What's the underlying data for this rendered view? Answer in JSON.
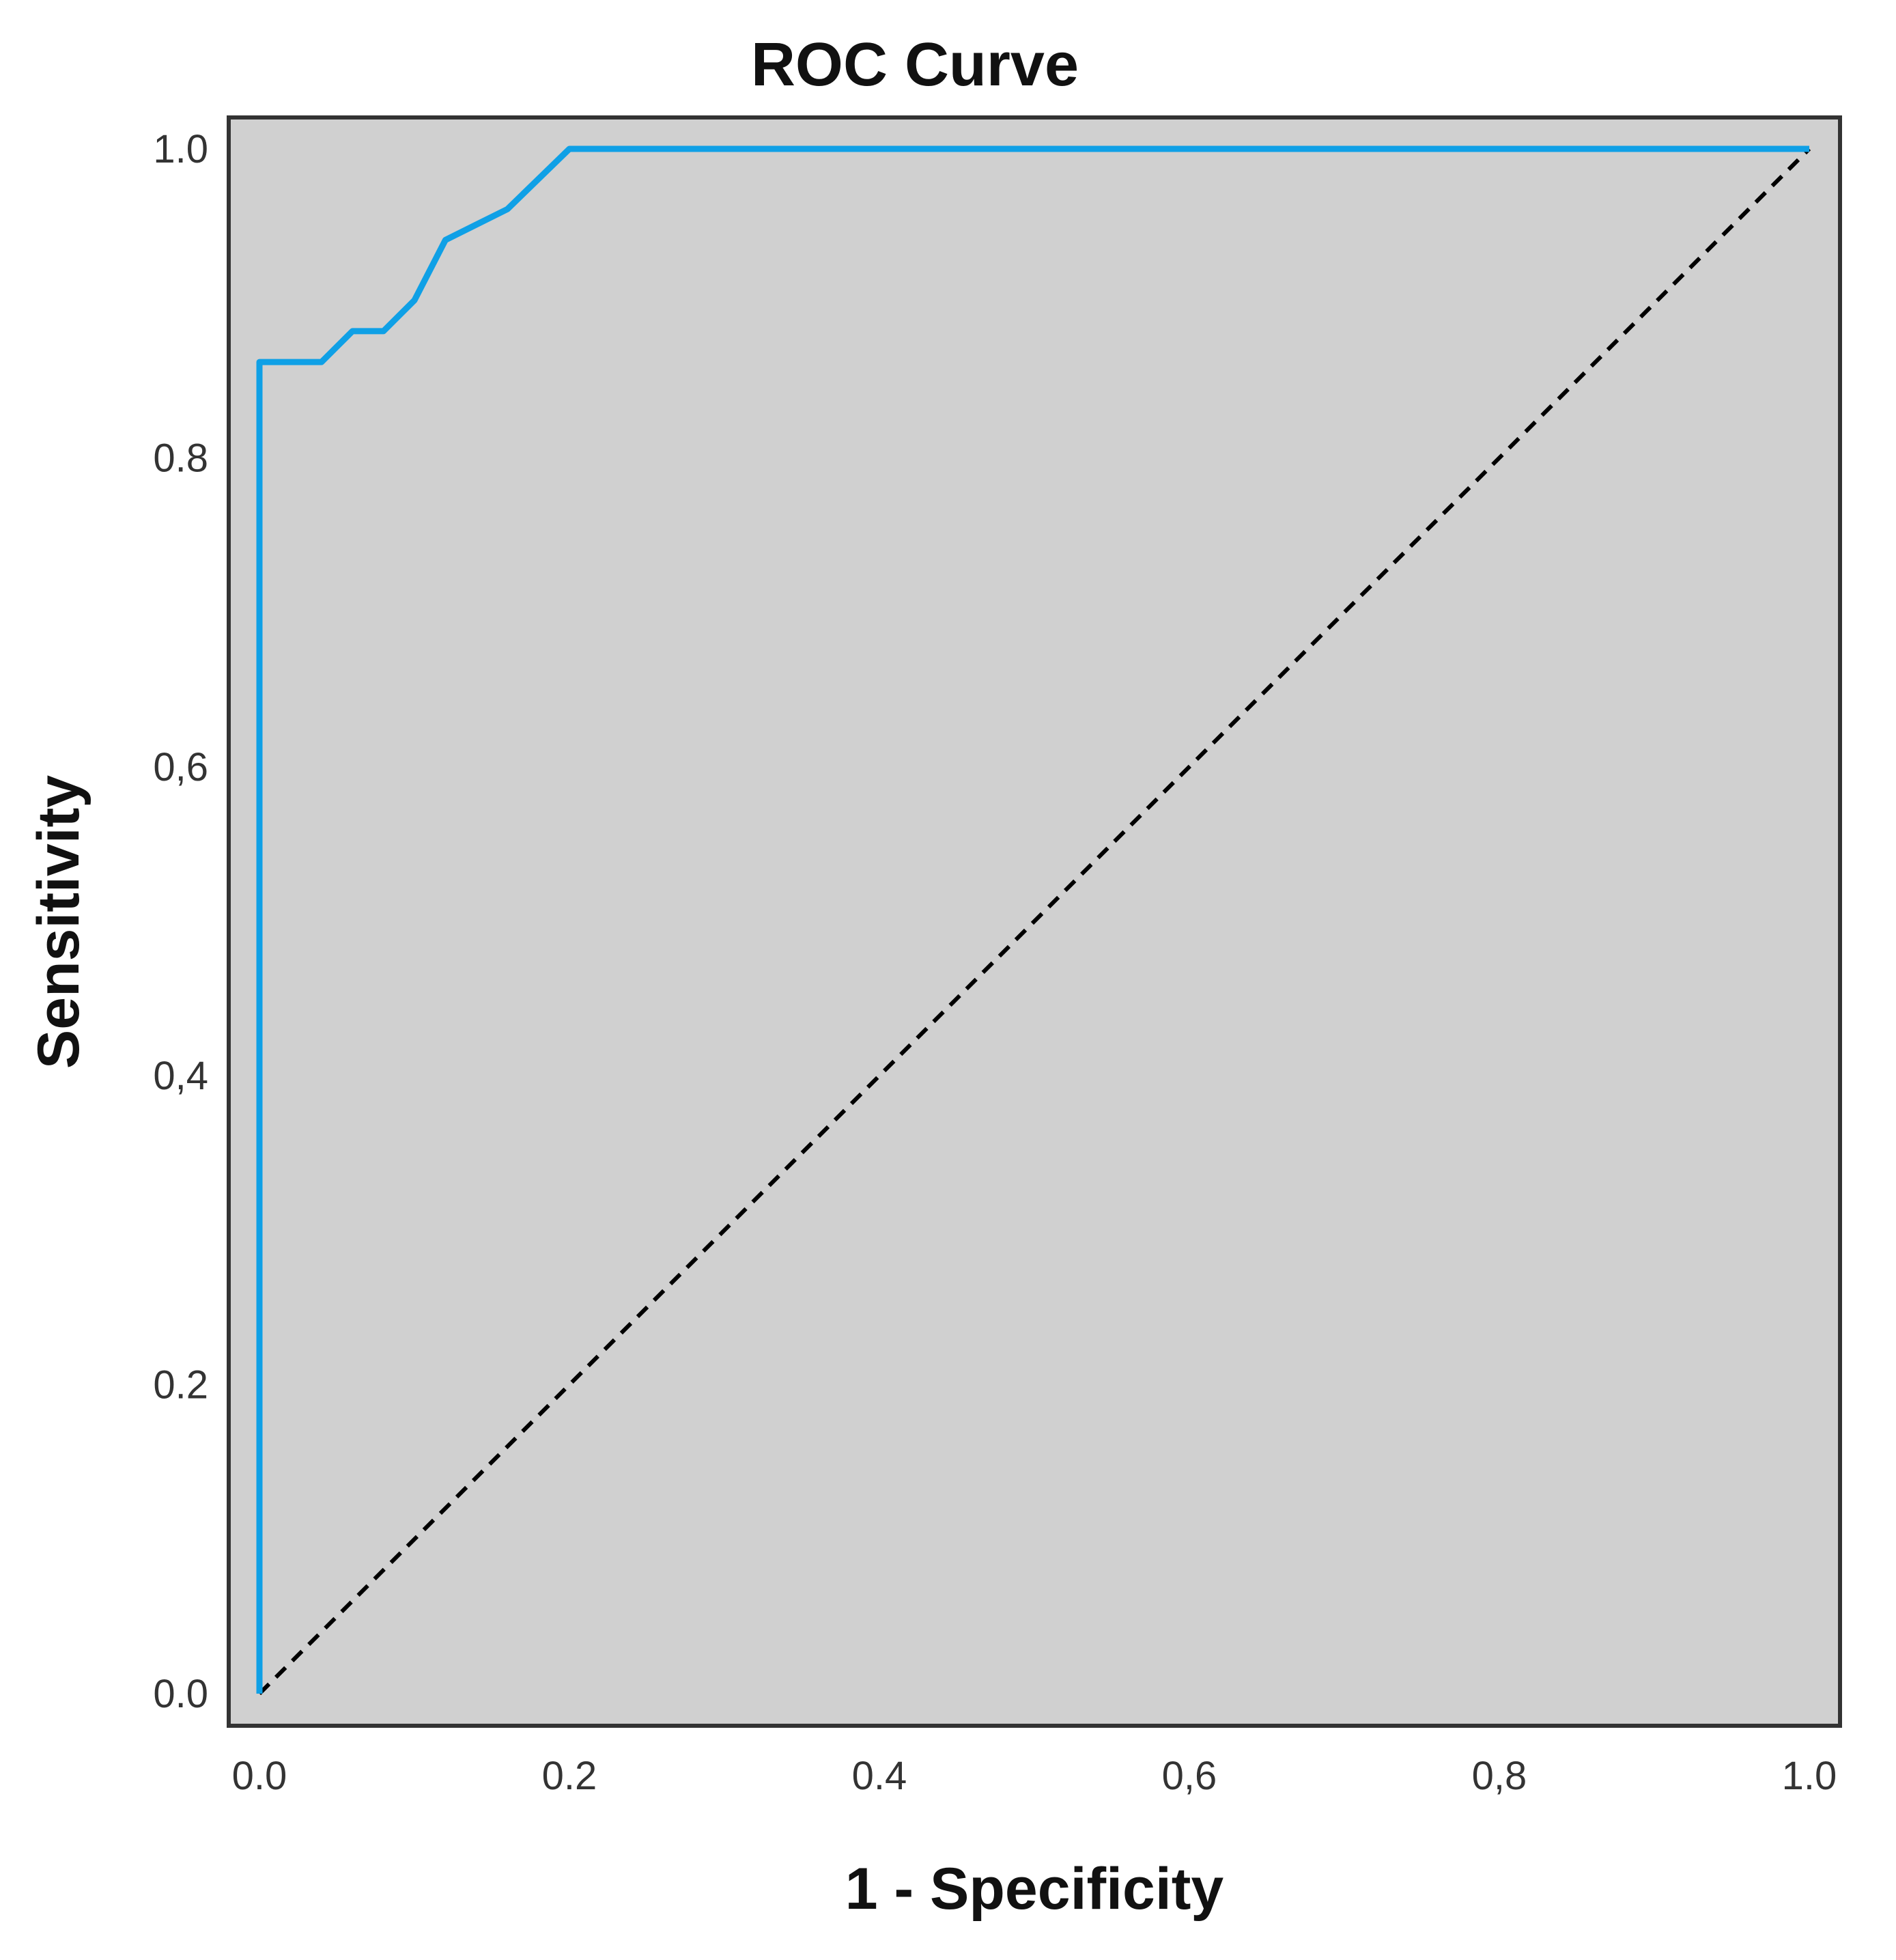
{
  "chart_data": {
    "type": "line",
    "title": "ROC Curve",
    "xlabel": "1 - Specificity",
    "ylabel": "Sensitivity",
    "xlim": [
      0,
      1
    ],
    "ylim": [
      0,
      1
    ],
    "x_ticks": [
      "0.0",
      "0.2",
      "0.4",
      "0,6",
      "0,8",
      "1.0"
    ],
    "y_ticks": [
      "0.0",
      "0.2",
      "0,4",
      "0,6",
      "0.8",
      "1.0"
    ],
    "grid": false,
    "background_color": "#d0d0d0",
    "series": [
      {
        "style": "solid",
        "color": "#0fa0e6",
        "x": [
          0.0,
          0.0,
          0.04,
          0.06,
          0.08,
          0.1,
          0.12,
          0.14,
          0.16,
          0.2,
          1.0
        ],
        "y": [
          0.0,
          0.862,
          0.862,
          0.882,
          0.882,
          0.902,
          0.941,
          0.951,
          0.961,
          1.0,
          1.0
        ]
      },
      {
        "style": "dashed",
        "color": "#000000",
        "x": [
          0.0,
          1.0
        ],
        "y": [
          0.0,
          1.0
        ]
      }
    ]
  }
}
